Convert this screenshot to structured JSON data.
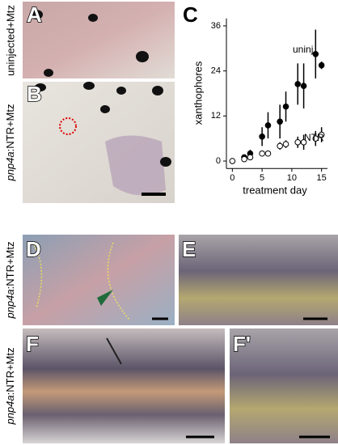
{
  "panel_labels": [
    "A",
    "B",
    "C",
    "D",
    "E",
    "F",
    "F'"
  ],
  "side_labels": [
    {
      "text": "uninjected+Mtz"
    },
    {
      "gene": "pnp4a",
      "text": ":NTR+Mtz"
    },
    {
      "gene": "pnp4a",
      "text": ":NTR+Mtz"
    },
    {
      "gene": "pnp4a",
      "text": ":NTR+Mtz"
    }
  ],
  "chart_data": {
    "type": "scatter",
    "x_label": "treatment day",
    "y_label": "xanthophores",
    "xlim": [
      -1,
      16
    ],
    "xticks": [
      0,
      5,
      10,
      15
    ],
    "ylim": [
      -2,
      38
    ],
    "yticks": [
      0,
      12,
      24,
      36
    ],
    "series": [
      {
        "name": "uninj",
        "color": "#000000",
        "x": [
          2,
          3,
          5,
          6,
          8,
          9,
          11,
          12,
          14,
          15
        ],
        "values": [
          1,
          2,
          6.5,
          9.5,
          10.5,
          14.5,
          20.5,
          20,
          28.5,
          25.5
        ],
        "errors": [
          0.5,
          1,
          2.5,
          3.5,
          4.5,
          4,
          5.5,
          6,
          6.5,
          1
        ]
      },
      {
        "name": "NTR",
        "color": "#ffffff",
        "x": [
          0,
          2,
          3,
          5,
          6,
          8,
          9,
          11,
          12,
          14,
          15
        ],
        "values": [
          0,
          0.5,
          1,
          2,
          2,
          4,
          4.5,
          5,
          5,
          6,
          7
        ],
        "errors": [
          0,
          0.3,
          0.5,
          0.5,
          0.5,
          1,
          1,
          1.5,
          2,
          2,
          2
        ]
      }
    ]
  }
}
